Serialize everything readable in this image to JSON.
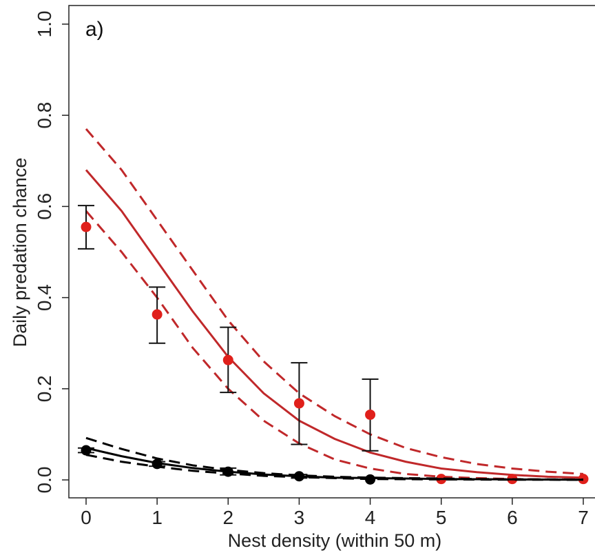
{
  "chart_data": {
    "type": "line",
    "panel_label": "a)",
    "xlabel": "Nest density (within 50 m)",
    "ylabel": "Daily predation chance",
    "xlim": [
      -0.2,
      7.2
    ],
    "ylim": [
      0.0,
      1.0
    ],
    "x_ticks": [
      "0",
      "1",
      "2",
      "3",
      "4",
      "5",
      "6",
      "7"
    ],
    "y_ticks": [
      "0.0",
      "0.2",
      "0.4",
      "0.6",
      "0.8",
      "1.0"
    ],
    "grid": false,
    "series": [
      {
        "color": "#e0201b",
        "fit_color": "#c0282a",
        "points": [
          {
            "x": 0,
            "y": 0.555,
            "lo": 0.507,
            "hi": 0.602
          },
          {
            "x": 1,
            "y": 0.363,
            "lo": 0.3,
            "hi": 0.423
          },
          {
            "x": 2,
            "y": 0.263,
            "lo": 0.192,
            "hi": 0.335
          },
          {
            "x": 3,
            "y": 0.168,
            "lo": 0.078,
            "hi": 0.257
          },
          {
            "x": 4,
            "y": 0.143,
            "lo": 0.064,
            "hi": 0.221
          },
          {
            "x": 5,
            "y": 0.002
          },
          {
            "x": 6,
            "y": 0.002
          },
          {
            "x": 7,
            "y": 0.002
          }
        ],
        "fit": {
          "x": [
            0,
            0.5,
            1,
            1.5,
            2,
            2.5,
            3,
            3.5,
            4,
            4.5,
            5,
            5.5,
            6,
            6.5,
            7
          ],
          "y": [
            0.68,
            0.59,
            0.48,
            0.37,
            0.27,
            0.19,
            0.13,
            0.09,
            0.06,
            0.04,
            0.025,
            0.017,
            0.011,
            0.007,
            0.005
          ]
        },
        "fit_upper": {
          "x": [
            0,
            0.5,
            1,
            1.5,
            2,
            2.5,
            3,
            3.5,
            4,
            4.5,
            5,
            5.5,
            6,
            6.5,
            7
          ],
          "y": [
            0.77,
            0.68,
            0.57,
            0.46,
            0.35,
            0.26,
            0.19,
            0.14,
            0.1,
            0.07,
            0.05,
            0.035,
            0.025,
            0.018,
            0.013
          ]
        },
        "fit_lower": {
          "x": [
            0,
            0.5,
            1,
            1.5,
            2,
            2.5,
            3,
            3.5,
            4,
            4.5,
            5,
            5.5,
            6,
            6.5,
            7
          ],
          "y": [
            0.59,
            0.5,
            0.4,
            0.29,
            0.2,
            0.13,
            0.08,
            0.045,
            0.025,
            0.013,
            0.007,
            0.004,
            0.002,
            0.001,
            0.001
          ]
        }
      },
      {
        "color": "#000000",
        "fit_color": "#000000",
        "points": [
          {
            "x": 0,
            "y": 0.065,
            "lo": 0.06,
            "hi": 0.07
          },
          {
            "x": 1,
            "y": 0.035,
            "lo": 0.03,
            "hi": 0.04
          },
          {
            "x": 2,
            "y": 0.018,
            "lo": 0.011,
            "hi": 0.026
          },
          {
            "x": 3,
            "y": 0.008,
            "lo": 0.004,
            "hi": 0.012
          },
          {
            "x": 4,
            "y": 0.001
          }
        ],
        "fit": {
          "x": [
            0,
            0.5,
            1,
            1.5,
            2,
            2.5,
            3,
            3.5,
            4,
            4.5,
            5,
            5.5,
            6,
            6.5,
            7
          ],
          "y": [
            0.07,
            0.052,
            0.037,
            0.026,
            0.018,
            0.012,
            0.008,
            0.005,
            0.004,
            0.003,
            0.002,
            0.0015,
            0.001,
            0.0008,
            0.0005
          ]
        },
        "fit_upper": {
          "x": [
            0,
            0.5,
            1,
            1.5,
            2,
            2.5,
            3,
            3.5,
            4,
            4.5,
            5,
            5.5,
            6,
            6.5,
            7
          ],
          "y": [
            0.092,
            0.068,
            0.047,
            0.032,
            0.022,
            0.015,
            0.01,
            0.007,
            0.005,
            0.004,
            0.003,
            0.002,
            0.0015,
            0.001,
            0.0008
          ]
        },
        "fit_lower": {
          "x": [
            0,
            0.5,
            1,
            1.5,
            2,
            2.5,
            3,
            3.5,
            4,
            4.5,
            5,
            5.5,
            6,
            6.5,
            7
          ],
          "y": [
            0.055,
            0.04,
            0.029,
            0.02,
            0.014,
            0.009,
            0.006,
            0.004,
            0.002,
            0.0015,
            0.001,
            0.0007,
            0.0005,
            0.0003,
            0.0002
          ]
        }
      }
    ]
  }
}
